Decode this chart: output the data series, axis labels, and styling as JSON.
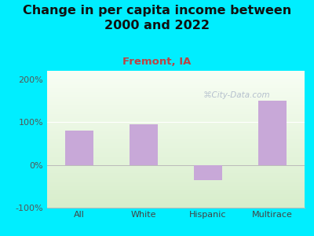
{
  "title": "Change in per capita income between\n2000 and 2022",
  "subtitle": "Fremont, IA",
  "categories": [
    "All",
    "White",
    "Hispanic",
    "Multirace"
  ],
  "values": [
    80,
    95,
    -35,
    150
  ],
  "bar_color": "#c8a8d8",
  "background_outer": "#00eeff",
  "title_fontsize": 11.5,
  "title_color": "#111111",
  "subtitle_fontsize": 9.5,
  "subtitle_color": "#bb4444",
  "tick_label_color": "#555555",
  "xlabel_color": "#444444",
  "ylim": [
    -100,
    220
  ],
  "yticks": [
    -100,
    0,
    100,
    200
  ],
  "ytick_labels": [
    "-100%",
    "0%",
    "100%",
    "200%"
  ],
  "watermark": "City-Data.com",
  "bar_width": 0.45
}
